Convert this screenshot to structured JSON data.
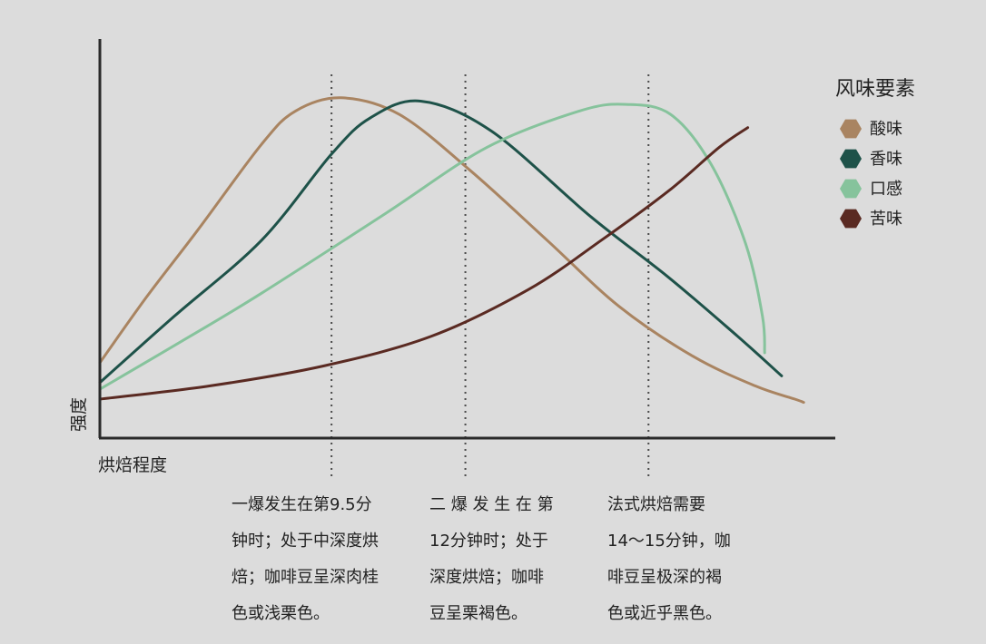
{
  "chart_data": {
    "type": "line",
    "title": "",
    "xlabel": "烘焙程度",
    "ylabel": "强度",
    "x_range": [
      0,
      100
    ],
    "y_range": [
      0,
      100
    ],
    "grid": false,
    "legend": {
      "title": "风味要素",
      "position": "top-right"
    },
    "series": [
      {
        "name": "酸味",
        "color": "#a98461",
        "marker": "hexagon",
        "x": [
          0,
          6.4,
          13.3,
          22.0,
          26.6,
          32.8,
          40.7,
          50.4,
          60.8,
          70.6,
          80.6,
          89.1,
          94.5,
          95.7
        ],
        "y": [
          11,
          31,
          51,
          77,
          87,
          91,
          86,
          69,
          48,
          28,
          13,
          4,
          0,
          -1
        ]
      },
      {
        "name": "香味",
        "color": "#1e5249",
        "marker": "hexagon",
        "x": [
          0,
          10.1,
          22.0,
          31.5,
          36.8,
          43.6,
          53.2,
          66.8,
          77.2,
          86.7,
          92.7
        ],
        "y": [
          5,
          25,
          48,
          74,
          85,
          90,
          81,
          55,
          37,
          19,
          7
        ]
      },
      {
        "name": "口感",
        "color": "#86c39c",
        "marker": "hexagon",
        "x": [
          0,
          12.3,
          22.0,
          38.8,
          52.6,
          65.2,
          71.6,
          77.6,
          83.1,
          87.8,
          90.1,
          90.4
        ],
        "y": [
          3,
          19,
          32,
          56,
          76,
          87,
          89,
          86,
          71,
          47,
          25,
          14
        ]
      },
      {
        "name": "苦味",
        "color": "#5a2a22",
        "marker": "hexagon",
        "x": [
          0,
          15.0,
          30.4,
          45.1,
          58.2,
          68.2,
          77.4,
          84.2,
          88.1
        ],
        "y": [
          0,
          4,
          10,
          19,
          33,
          48,
          63,
          76,
          82
        ]
      }
    ],
    "reference_lines": [
      {
        "x": 31.5,
        "annotation": [
          "一爆发生在第9.5分",
          "钟时；处于中深度烘",
          "焙；咖啡豆呈深肉桂",
          "色或浅栗色。"
        ]
      },
      {
        "x": 49.7,
        "annotation": [
          "二 爆 发 生 在 第",
          "12分钟时；处于",
          "深度烘焙；咖啡",
          "豆呈栗褐色。"
        ]
      },
      {
        "x": 74.6,
        "annotation": [
          "法式烘焙需要",
          "14～15分钟，咖",
          "啡豆呈极深的褐",
          "色或近乎黑色。"
        ]
      }
    ]
  }
}
